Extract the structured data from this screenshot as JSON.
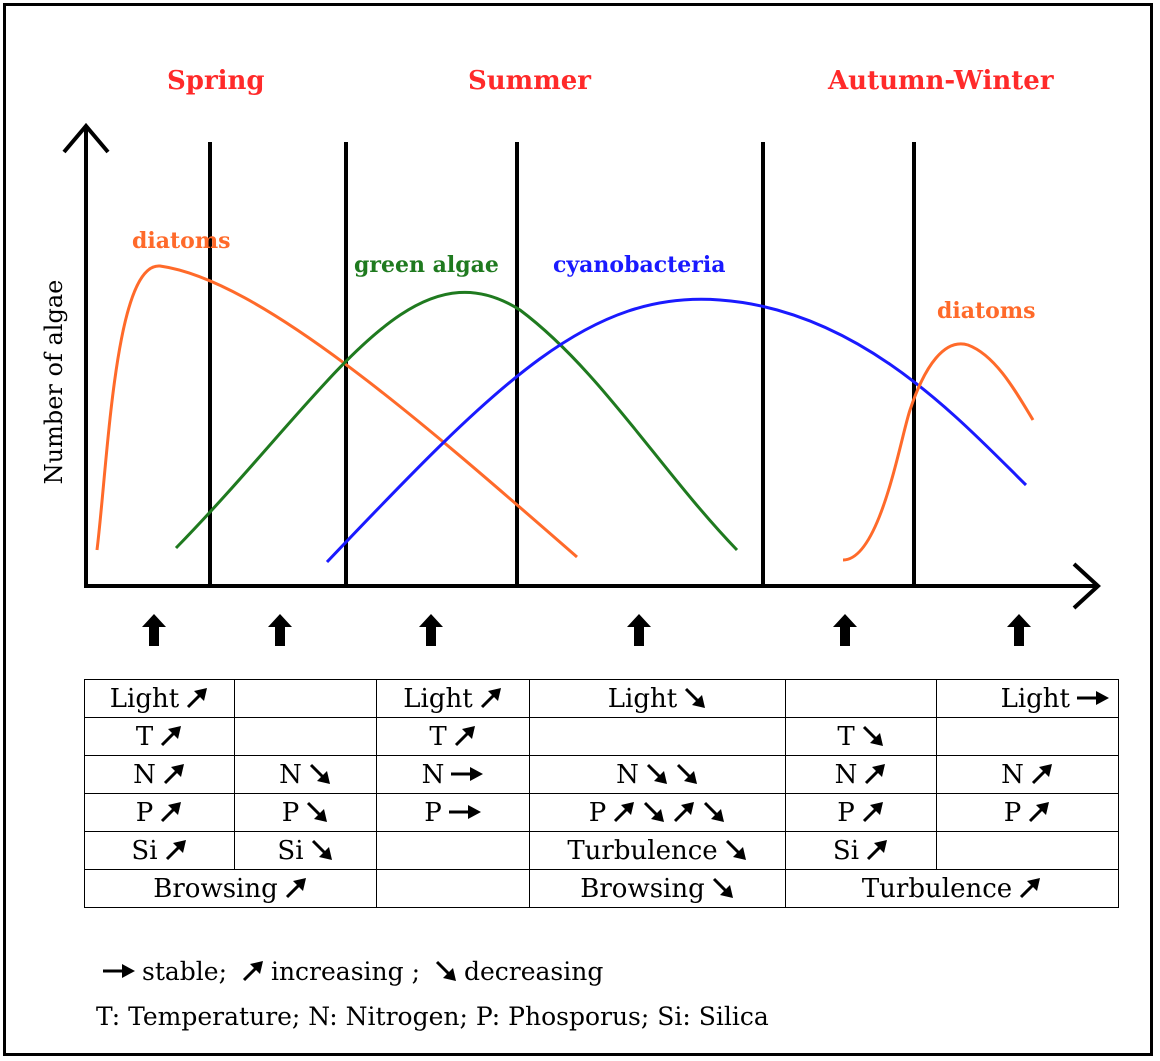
{
  "seasons": [
    "Spring",
    "Summer",
    "Autumn-Winter"
  ],
  "y_axis_label": "Number of algae",
  "curve_labels": {
    "diatoms_spring": "diatoms",
    "green_algae": "green algae",
    "cyanobacteria": "cyanobacteria",
    "diatoms_autumn": "diatoms"
  },
  "colors": {
    "season_text": "#ff2a2a",
    "diatoms": "#ff6a2a",
    "green_algae": "#1f7a1f",
    "cyanobacteria": "#1a1aff",
    "lines": "#000000"
  },
  "table": {
    "rows": [
      [
        {
          "text": "Light",
          "arrow": "up"
        },
        {
          "text": ""
        },
        {
          "text": "Light",
          "arrow": "up"
        },
        {
          "text": "Light",
          "arrow": "down"
        },
        {
          "text": ""
        },
        {
          "text": "Light",
          "arrow": "right"
        }
      ],
      [
        {
          "text": "T",
          "arrow": "up"
        },
        {
          "text": ""
        },
        {
          "text": "T",
          "arrow": "up"
        },
        {
          "text": ""
        },
        {
          "text": "T",
          "arrow": "down"
        },
        {
          "text": ""
        }
      ],
      [
        {
          "text": "N",
          "arrow": "up"
        },
        {
          "text": "N",
          "arrow": "down"
        },
        {
          "text": "N",
          "arrow": "right"
        },
        {
          "text": "N",
          "arrows": [
            "down",
            "down"
          ]
        },
        {
          "text": "N",
          "arrow": "up"
        },
        {
          "text": "N",
          "arrow": "up"
        }
      ],
      [
        {
          "text": "P",
          "arrow": "up"
        },
        {
          "text": "P",
          "arrow": "down"
        },
        {
          "text": "P",
          "arrow": "right"
        },
        {
          "text": "P",
          "arrows": [
            "up",
            "down",
            "up",
            "down"
          ]
        },
        {
          "text": "P",
          "arrow": "up"
        },
        {
          "text": "P",
          "arrow": "up"
        }
      ],
      [
        {
          "text": "Si",
          "arrow": "up"
        },
        {
          "text": "Si",
          "arrow": "down"
        },
        {
          "text": ""
        },
        {
          "text": "Turbulence",
          "arrow": "down"
        },
        {
          "text": "Si",
          "arrow": "up"
        },
        {
          "text": ""
        }
      ]
    ],
    "last_row": {
      "browsing_increase": {
        "text": "Browsing",
        "arrow": "up"
      },
      "empty": {
        "text": ""
      },
      "browsing_decrease": {
        "text": "Browsing",
        "arrow": "down"
      },
      "turbulence_increase": {
        "text": "Turbulence",
        "arrow": "up"
      }
    }
  },
  "legend": {
    "stable": "stable;",
    "increasing": "increasing ;",
    "decreasing": "decreasing",
    "abbreviations": "T: Temperature; N: Nitrogen; P: Phosporus; Si: Silica"
  }
}
